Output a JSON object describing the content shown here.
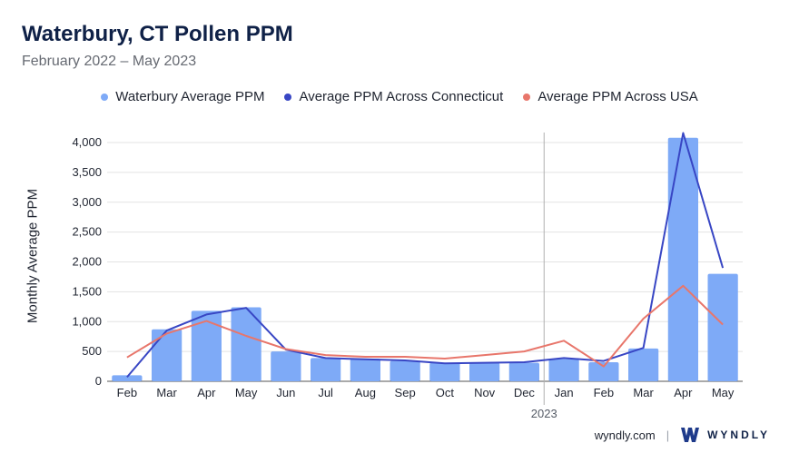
{
  "header": {
    "title": "Waterbury, CT Pollen PPM",
    "subtitle": "February 2022 – May 2023"
  },
  "footer": {
    "site": "wyndly.com",
    "separator": "|",
    "brand": "WYNDLY"
  },
  "colors": {
    "bars": "#7eaaf7",
    "ct_line": "#3846c4",
    "usa_line": "#e8766b",
    "grid": "#e3e3e3",
    "divider": "#b0b0b0"
  },
  "chart_data": {
    "type": "bar",
    "title": "Waterbury, CT Pollen PPM",
    "subtitle": "February 2022 – May 2023",
    "ylabel": "Monthly Average PPM",
    "xlabel": "",
    "ylim": [
      0,
      4000
    ],
    "yticks": [
      0,
      500,
      1000,
      1500,
      2000,
      2500,
      3000,
      3500,
      4000
    ],
    "ytick_labels": [
      "0",
      "500",
      "1,000",
      "1,500",
      "2,000",
      "2,500",
      "3,000",
      "3,500",
      "4,000"
    ],
    "grid": true,
    "legend_position": "top-center",
    "categories": [
      "Feb",
      "Mar",
      "Apr",
      "May",
      "Jun",
      "Jul",
      "Aug",
      "Sep",
      "Oct",
      "Nov",
      "Dec",
      "Jan",
      "Feb",
      "Mar",
      "Apr",
      "May"
    ],
    "year_marker": {
      "label": "2023",
      "before_index": 11
    },
    "series": [
      {
        "name": "Waterbury Average PPM",
        "kind": "bar",
        "values": [
          100,
          870,
          1180,
          1240,
          500,
          390,
          380,
          340,
          310,
          310,
          310,
          370,
          320,
          550,
          4080,
          1800
        ]
      },
      {
        "name": "Average PPM Across Connecticut",
        "kind": "line",
        "values": [
          70,
          850,
          1120,
          1230,
          530,
          390,
          370,
          350,
          300,
          310,
          320,
          390,
          340,
          560,
          4160,
          1900
        ]
      },
      {
        "name": "Average PPM Across USA",
        "kind": "line",
        "values": [
          400,
          800,
          1010,
          760,
          540,
          440,
          410,
          410,
          380,
          440,
          500,
          680,
          250,
          1050,
          1600,
          950
        ]
      }
    ]
  }
}
